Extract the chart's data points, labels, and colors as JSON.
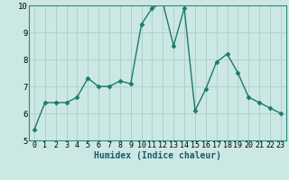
{
  "x": [
    0,
    1,
    2,
    3,
    4,
    5,
    6,
    7,
    8,
    9,
    10,
    11,
    12,
    13,
    14,
    15,
    16,
    17,
    18,
    19,
    20,
    21,
    22,
    23
  ],
  "y": [
    5.4,
    6.4,
    6.4,
    6.4,
    6.6,
    7.3,
    7.0,
    7.0,
    7.2,
    7.1,
    9.3,
    9.9,
    10.1,
    8.5,
    9.9,
    6.1,
    6.9,
    7.9,
    8.2,
    7.5,
    6.6,
    6.4,
    6.2,
    6.0
  ],
  "xlabel": "Humidex (Indice chaleur)",
  "ylim": [
    5,
    10
  ],
  "xlim_left": -0.5,
  "xlim_right": 23.5,
  "yticks": [
    5,
    6,
    7,
    8,
    9,
    10
  ],
  "xticks": [
    0,
    1,
    2,
    3,
    4,
    5,
    6,
    7,
    8,
    9,
    10,
    11,
    12,
    13,
    14,
    15,
    16,
    17,
    18,
    19,
    20,
    21,
    22,
    23
  ],
  "line_color": "#1a7a6e",
  "bg_color": "#cce8e4",
  "grid_color": "#b0d0cc",
  "marker": "D",
  "marker_size": 2.5,
  "line_width": 1.0,
  "tick_fontsize": 6.0,
  "xlabel_fontsize": 7.0,
  "xlabel_color": "#1a5a6e",
  "spine_color": "#2a8a7e",
  "ytick_fontsize": 6.5
}
